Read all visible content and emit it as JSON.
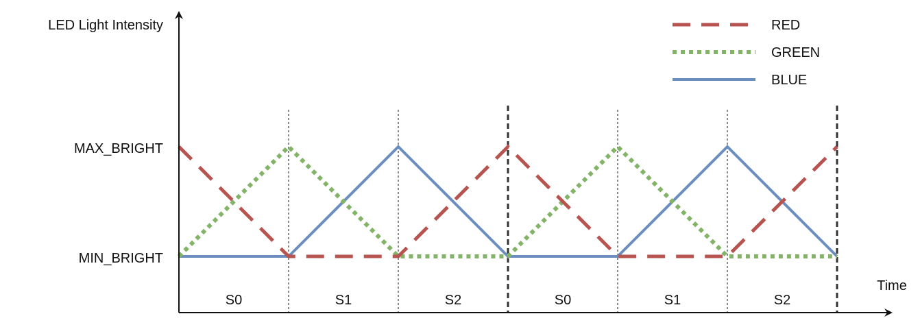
{
  "chart_data": {
    "type": "line",
    "title": "",
    "xlabel": "Time",
    "ylabel": "LED Light Intensity",
    "ylim": [
      0,
      1
    ],
    "y_ticks": [
      {
        "label": "MIN_BRIGHT",
        "value": 0
      },
      {
        "label": "MAX_BRIGHT",
        "value": 1
      }
    ],
    "x": [
      0,
      1,
      2,
      3,
      4,
      5,
      6
    ],
    "xlim": [
      0,
      6
    ],
    "segments": [
      "S0",
      "S1",
      "S2",
      "S0",
      "S1",
      "S2"
    ],
    "boundaries": [
      {
        "x": 1,
        "style": "thin"
      },
      {
        "x": 2,
        "style": "thin"
      },
      {
        "x": 3,
        "style": "thick"
      },
      {
        "x": 4,
        "style": "thin"
      },
      {
        "x": 5,
        "style": "thin"
      },
      {
        "x": 6,
        "style": "thick"
      }
    ],
    "series": [
      {
        "name": "RED",
        "color": "#b85450",
        "line_style": "dashed",
        "values": [
          1,
          0,
          0,
          1,
          0,
          0,
          1
        ]
      },
      {
        "name": "GREEN",
        "color": "#82b366",
        "line_style": "dotted",
        "values": [
          0,
          1,
          0,
          0,
          1,
          0,
          0
        ]
      },
      {
        "name": "BLUE",
        "color": "#6c8ebf",
        "line_style": "solid",
        "values": [
          0,
          0,
          1,
          0,
          0,
          1,
          0
        ]
      }
    ],
    "legend": {
      "position": "top-right"
    }
  }
}
